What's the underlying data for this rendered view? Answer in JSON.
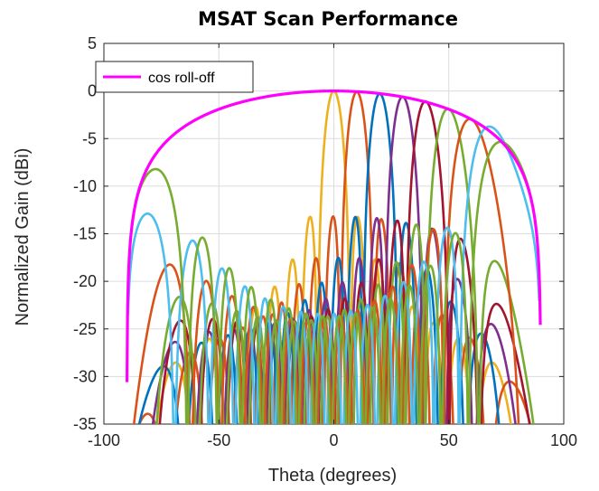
{
  "chart_data": {
    "type": "line",
    "title": "MSAT Scan Performance",
    "xlabel": "Theta (degrees)",
    "ylabel": "Normalized Gain (dBi)",
    "xlim": [
      -100,
      100
    ],
    "ylim": [
      -35,
      5
    ],
    "x_ticks": [
      "-100",
      "-50",
      "0",
      "50",
      "100"
    ],
    "y_ticks": [
      "5",
      "0",
      "-5",
      "-10",
      "-15",
      "-20",
      "-25",
      "-30",
      "-35"
    ],
    "grid": true,
    "legend_position": "top-left",
    "envelope": {
      "name": "cos roll-off",
      "color": "#ff00ff",
      "x_start": -90,
      "x_end": 90,
      "peak_gain_db": 0
    },
    "series": [
      {
        "scan_angle_deg": 0,
        "peak_db": 0.0,
        "color": "#EDB120"
      },
      {
        "scan_angle_deg": 10,
        "peak_db": -0.1,
        "color": "#D95319"
      },
      {
        "scan_angle_deg": 20,
        "peak_db": -0.3,
        "color": "#0072BD"
      },
      {
        "scan_angle_deg": 30,
        "peak_db": -0.6,
        "color": "#7E2F8E"
      },
      {
        "scan_angle_deg": 40,
        "peak_db": -1.1,
        "color": "#A2142F"
      },
      {
        "scan_angle_deg": 50,
        "peak_db": -1.9,
        "color": "#77AC30"
      },
      {
        "scan_angle_deg": 60,
        "peak_db": -3.0,
        "color": "#D95319"
      },
      {
        "scan_angle_deg": 70,
        "peak_db": -4.0,
        "color": "#4DBEEE"
      },
      {
        "scan_angle_deg": 78,
        "peak_db": -6.4,
        "color": "#77AC30"
      }
    ],
    "colors": {
      "grid": "#dcdcdc",
      "axes": "#262626",
      "envelope": "#ff00ff"
    }
  }
}
